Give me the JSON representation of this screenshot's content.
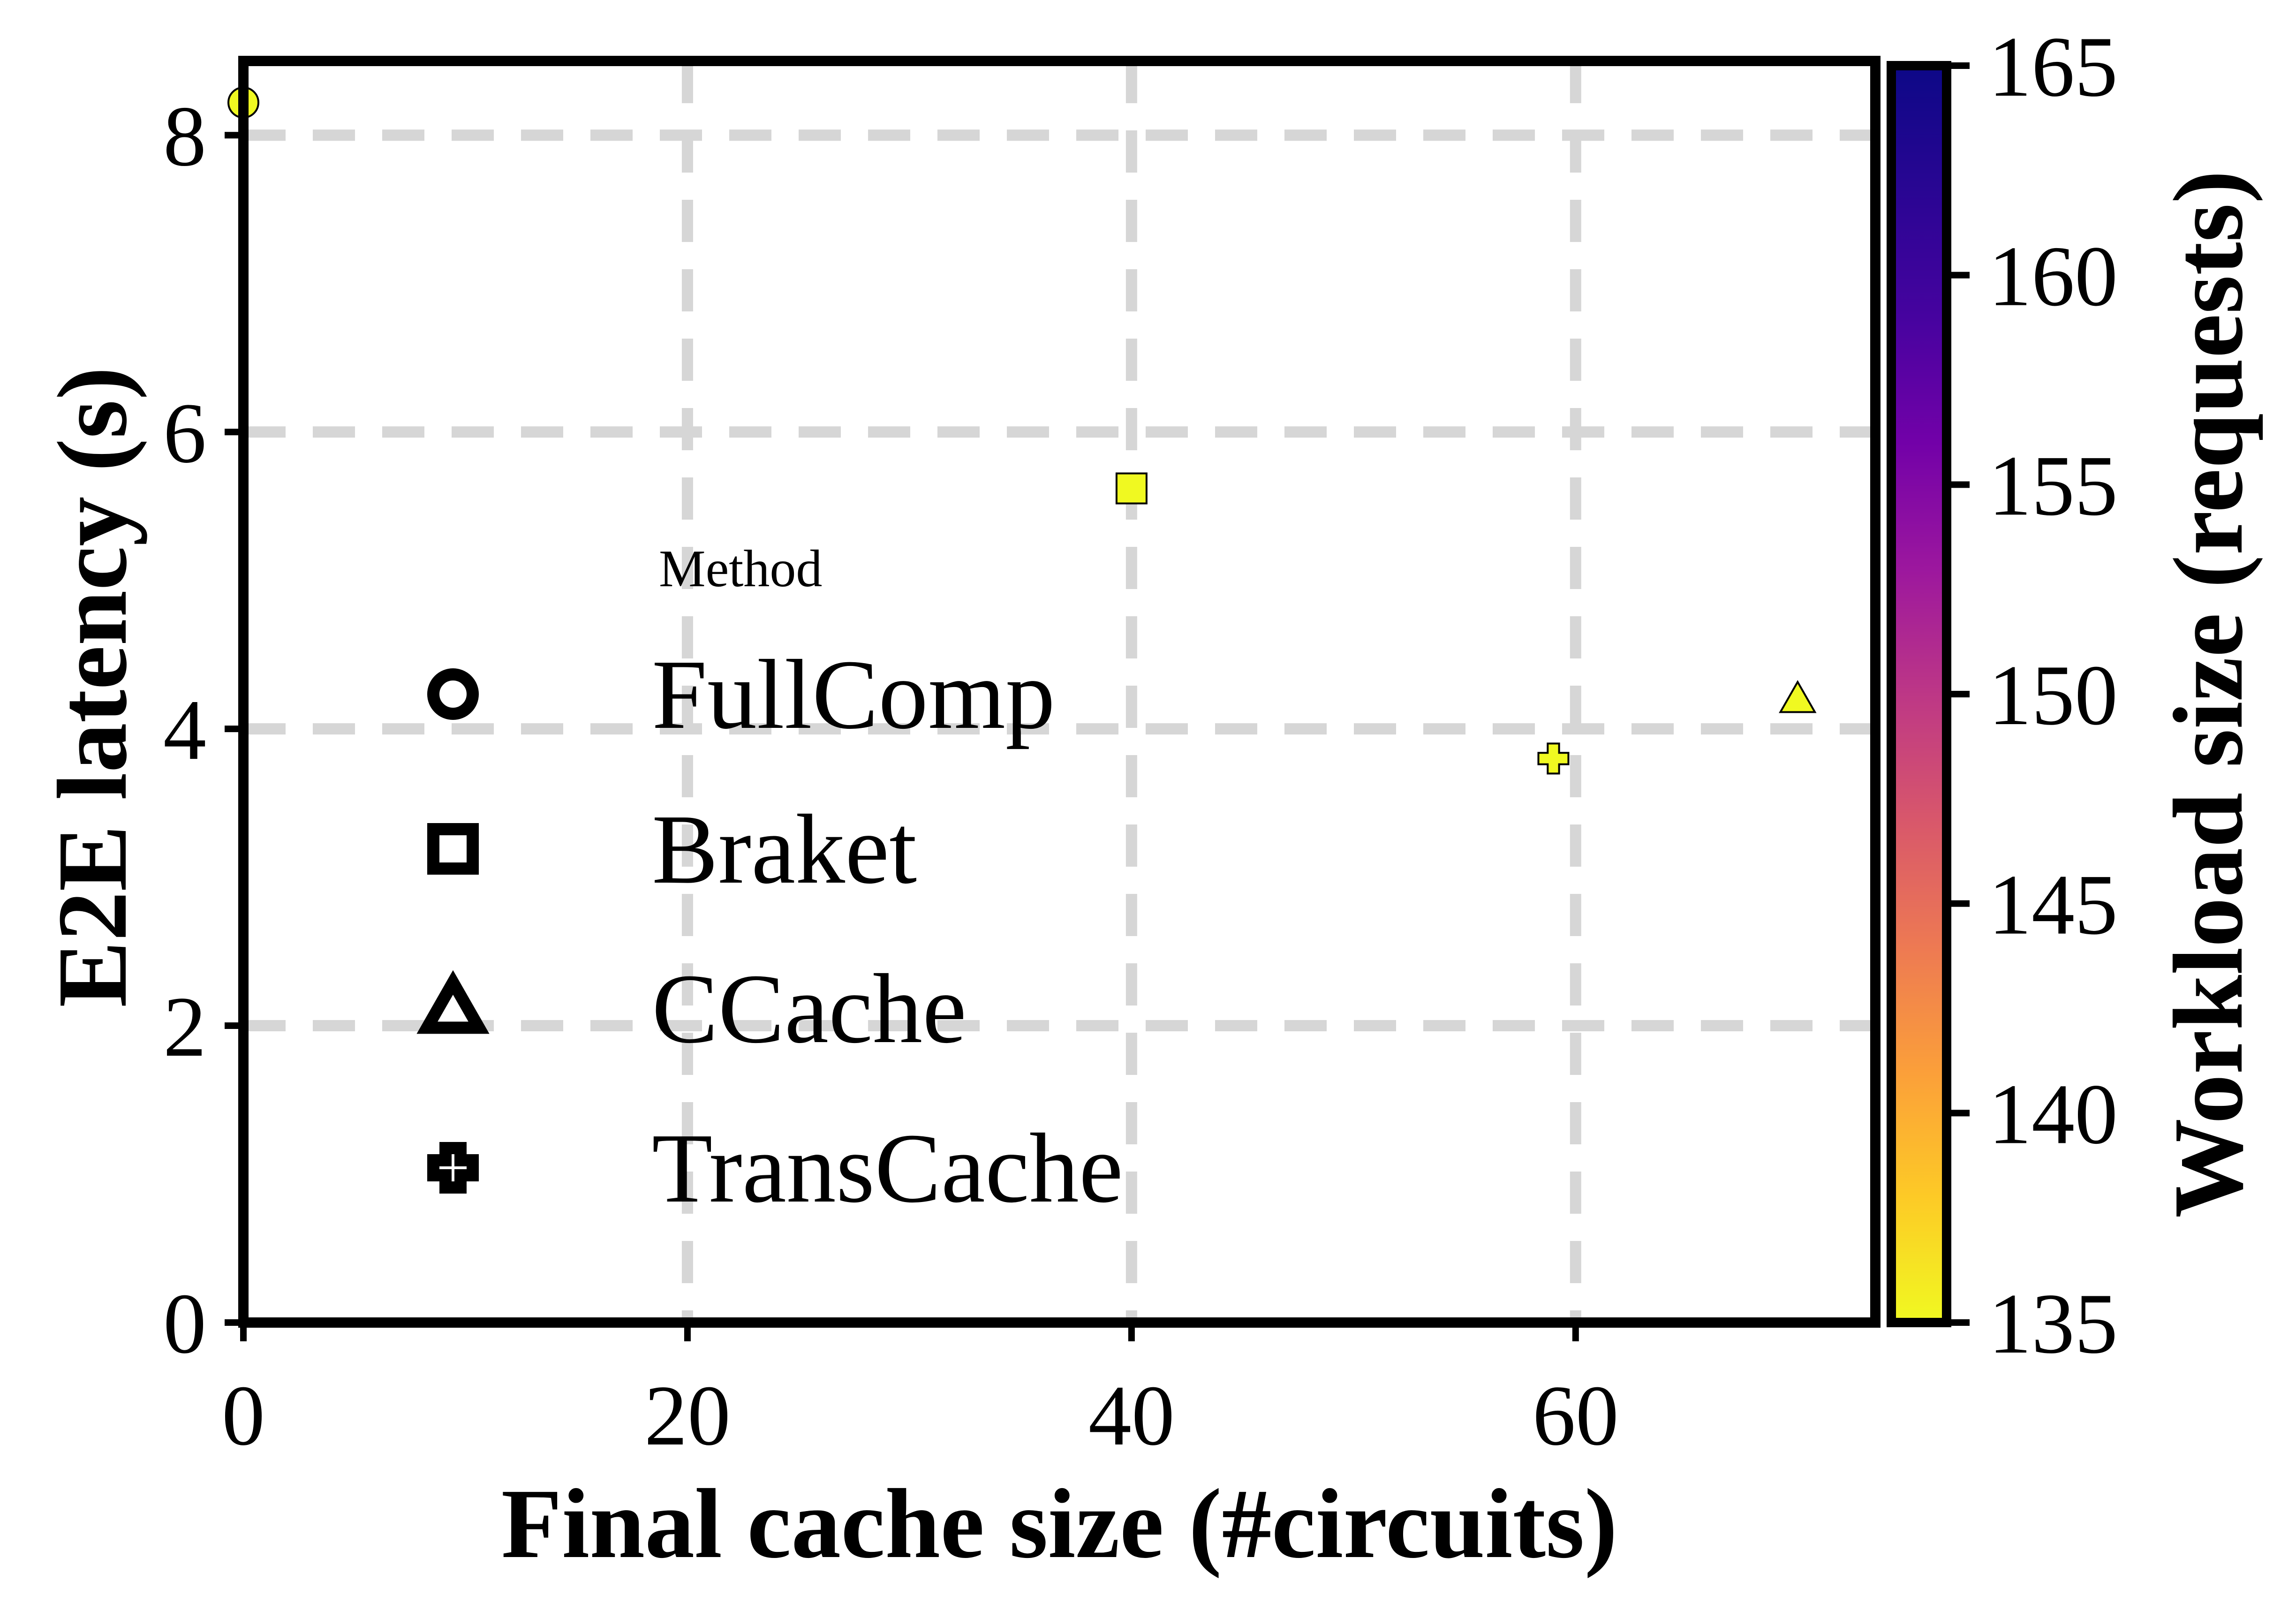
{
  "chart_data": {
    "type": "scatter",
    "title": "",
    "xlabel": "Final cache size (#circuits)",
    "ylabel": "E2E latency (s)",
    "xlim": [
      0,
      73.5
    ],
    "ylim": [
      0,
      8.5
    ],
    "xticks": [
      0,
      20,
      40,
      60
    ],
    "yticks": [
      0,
      2,
      4,
      6,
      8
    ],
    "grid": true,
    "grid_style": "dashed",
    "legend": {
      "title": "Method",
      "placement": "center-left",
      "entries": [
        {
          "label": "FullComp",
          "marker": "circle"
        },
        {
          "label": "Braket",
          "marker": "square"
        },
        {
          "label": "CCache",
          "marker": "triangle"
        },
        {
          "label": "TransCache",
          "marker": "plus"
        }
      ]
    },
    "points": [
      {
        "method": "FullComp",
        "marker": "circle",
        "x": 0,
        "y": 8.22,
        "workload": 135
      },
      {
        "method": "Braket",
        "marker": "square",
        "x": 40,
        "y": 5.62,
        "workload": 135
      },
      {
        "method": "CCache",
        "marker": "triangle",
        "x": 70,
        "y": 4.2,
        "workload": 135
      },
      {
        "method": "TransCache",
        "marker": "plus",
        "x": 59,
        "y": 3.8,
        "workload": 135
      }
    ],
    "colorbar": {
      "label": "Workload size (requests)",
      "colormap": "plasma",
      "range": [
        135,
        165
      ],
      "ticks": [
        135,
        140,
        145,
        150,
        155,
        160,
        165
      ]
    },
    "colors": {
      "grid": "#d6d6d6",
      "axis": "#000000",
      "point_fill": "#f0f921",
      "point_edge": "#000000"
    }
  }
}
